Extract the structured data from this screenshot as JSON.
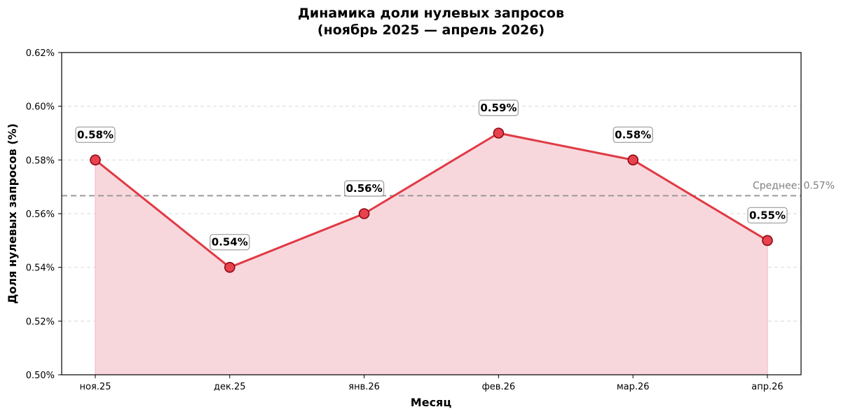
{
  "chart_data": {
    "type": "line",
    "title_line1": "Динамика доли нулевых запросов",
    "title_line2": "(ноябрь 2025 — апрель 2026)",
    "xlabel": "Месяц",
    "ylabel": "Доля нулевых запросов (%)",
    "categories": [
      "ноя.25",
      "дек.25",
      "янв.26",
      "фев.26",
      "мар.26",
      "апр.26"
    ],
    "values": [
      0.58,
      0.54,
      0.56,
      0.59,
      0.58,
      0.55
    ],
    "data_labels": [
      "0.58%",
      "0.54%",
      "0.56%",
      "0.59%",
      "0.58%",
      "0.55%"
    ],
    "ylim": [
      0.5,
      0.62
    ],
    "yticks": [
      0.5,
      0.52,
      0.54,
      0.56,
      0.58,
      0.6,
      0.62
    ],
    "ytick_labels": [
      "0.50%",
      "0.52%",
      "0.54%",
      "0.56%",
      "0.58%",
      "0.60%",
      "0.62%"
    ],
    "reference_line": {
      "value": 0.5667,
      "label": "Среднее: 0.57%"
    },
    "grid": "horizontal dashed",
    "area_fill": true,
    "colors": {
      "line": "#e03a45",
      "marker_fill": "#e8424e",
      "marker_edge": "#8b0a14",
      "area": "#f8d7dc",
      "reference": "#9a9a9a",
      "grid": "#d9d9d9"
    }
  }
}
